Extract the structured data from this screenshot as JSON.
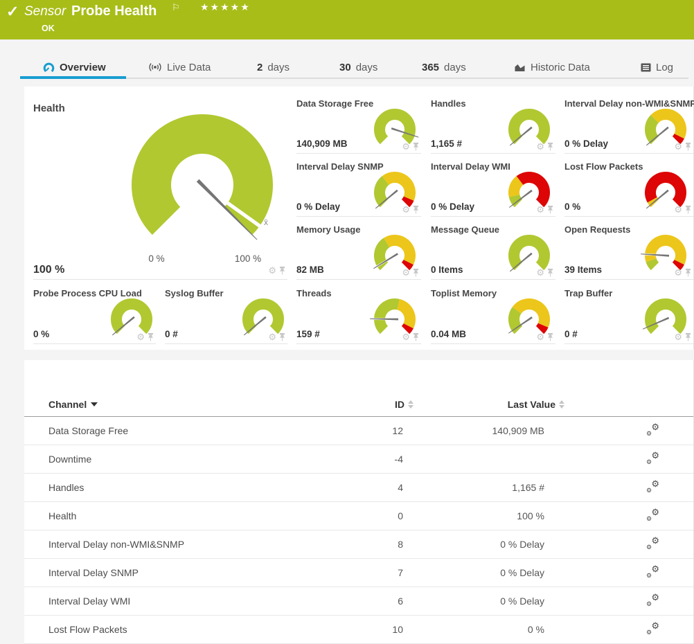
{
  "palette": {
    "green": "#b1c831",
    "yellow": "#ecc61a",
    "red": "#dd0505",
    "needle": "#757575",
    "accent_blue": "#189dd0",
    "header_green": "#a8bd18"
  },
  "header": {
    "kind_label": "Sensor",
    "title": "Probe Health",
    "status": "OK",
    "stars": "★★★★★",
    "check": "✓",
    "flag": "⚐"
  },
  "tabs": {
    "overview": "Overview",
    "live": "Live Data",
    "days2": {
      "num": "2",
      "unit": "days"
    },
    "days30": {
      "num": "30",
      "unit": "days"
    },
    "days365": {
      "num": "365",
      "unit": "days"
    },
    "historic": "Historic Data",
    "log": "Log"
  },
  "panel_gauges": {
    "health": {
      "title": "Health",
      "value": "100 %",
      "min_label": "0 %",
      "max_label": "100 %",
      "mean_label": "x̄",
      "needle": 1.0,
      "marker": 0.965,
      "segments": [
        [
          0,
          1,
          "green"
        ]
      ]
    },
    "items": [
      {
        "title": "Data Storage Free",
        "value": "140,909 MB",
        "needle": 0.9,
        "segments": [
          [
            0,
            1,
            "green"
          ]
        ]
      },
      {
        "title": "Handles",
        "value": "1,165 #",
        "needle": 0.02,
        "segments": [
          [
            0,
            1,
            "green"
          ]
        ]
      },
      {
        "title": "Interval Delay non-WMI&SNMP",
        "value": "0 % Delay",
        "needle": 0.02,
        "segments": [
          [
            0,
            0.33,
            "green"
          ],
          [
            0.33,
            0.93,
            "yellow"
          ],
          [
            0.93,
            1,
            "red"
          ]
        ]
      },
      {
        "title": "Interval Delay SNMP",
        "value": "0 % Delay",
        "needle": 0.02,
        "segments": [
          [
            0,
            0.36,
            "green"
          ],
          [
            0.36,
            0.92,
            "yellow"
          ],
          [
            0.92,
            1,
            "red"
          ]
        ]
      },
      {
        "title": "Interval Delay WMI",
        "value": "0 % Delay",
        "needle": 0.03,
        "segments": [
          [
            0,
            0.12,
            "green"
          ],
          [
            0.12,
            0.36,
            "yellow"
          ],
          [
            0.36,
            1,
            "red"
          ]
        ]
      },
      {
        "title": "Lost Flow Packets",
        "value": "0 %",
        "needle": 0.02,
        "segments": [
          [
            0,
            0.06,
            "yellow"
          ],
          [
            0.06,
            1,
            "red"
          ]
        ]
      },
      {
        "title": "Memory Usage",
        "value": "82 MB",
        "needle": 0.05,
        "marker": 0.05,
        "segments": [
          [
            0,
            0.38,
            "green"
          ],
          [
            0.38,
            0.93,
            "yellow"
          ],
          [
            0.93,
            1,
            "red"
          ]
        ]
      },
      {
        "title": "Message Queue",
        "value": "0 Items",
        "needle": 0.02,
        "segments": [
          [
            0,
            1,
            "green"
          ]
        ]
      },
      {
        "title": "Open Requests",
        "value": "39 Items",
        "needle": 0.18,
        "marker": 0.18,
        "segments": [
          [
            0,
            0.1,
            "green"
          ],
          [
            0.1,
            0.93,
            "yellow"
          ],
          [
            0.93,
            1,
            "red"
          ]
        ]
      },
      {
        "title": "Probe Process CPU Load",
        "value": "0 %",
        "needle": 0.02,
        "segments": [
          [
            0,
            1,
            "green"
          ]
        ]
      },
      {
        "title": "Syslog Buffer",
        "value": "0 #",
        "needle": 0.02,
        "segments": [
          [
            0,
            1,
            "green"
          ]
        ]
      },
      {
        "title": "Threads",
        "value": "159 #",
        "needle": 0.17,
        "marker": 0.17,
        "segments": [
          [
            0,
            0.55,
            "green"
          ],
          [
            0.55,
            0.93,
            "yellow"
          ],
          [
            0.93,
            1,
            "red"
          ]
        ]
      },
      {
        "title": "Toplist Memory",
        "value": "0.04 MB",
        "needle": 0.04,
        "segments": [
          [
            0,
            0.3,
            "green"
          ],
          [
            0.3,
            0.92,
            "yellow"
          ],
          [
            0.92,
            1,
            "red"
          ]
        ]
      },
      {
        "title": "Trap Buffer",
        "value": "0 #",
        "needle": 0.08,
        "segments": [
          [
            0,
            1,
            "green"
          ]
        ]
      }
    ]
  },
  "table": {
    "columns": {
      "channel": "Channel",
      "id": "ID",
      "last_value": "Last Value"
    },
    "rows": [
      {
        "name": "Data Storage Free",
        "id": "12",
        "value": "140,909 MB"
      },
      {
        "name": "Downtime",
        "id": "-4",
        "value": ""
      },
      {
        "name": "Handles",
        "id": "4",
        "value": "1,165 #"
      },
      {
        "name": "Health",
        "id": "0",
        "value": "100 %"
      },
      {
        "name": "Interval Delay non-WMI&SNMP",
        "id": "8",
        "value": "0 % Delay"
      },
      {
        "name": "Interval Delay SNMP",
        "id": "7",
        "value": "0 % Delay"
      },
      {
        "name": "Interval Delay WMI",
        "id": "6",
        "value": "0 % Delay"
      },
      {
        "name": "Lost Flow Packets",
        "id": "10",
        "value": "0 %"
      }
    ]
  }
}
